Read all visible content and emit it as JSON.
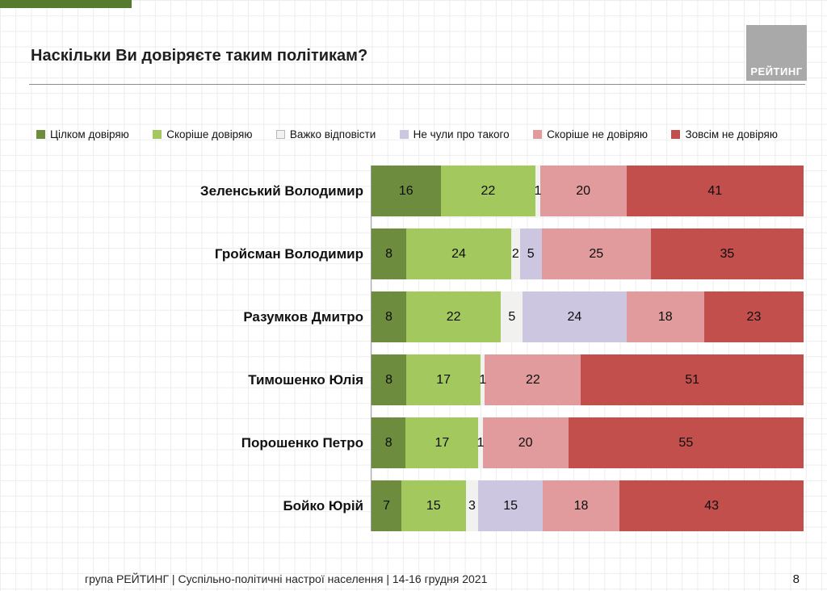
{
  "page": {
    "title": "Наскільки Ви довіряєте таким політикам?",
    "logo": "РЕЙТИНГ",
    "footer": "група РЕЙТИНГ | Суспільно-політичні настрої населення | 14-16 грудня 2021",
    "page_number": "8"
  },
  "chart_data": {
    "type": "bar",
    "orientation": "horizontal",
    "stacked": true,
    "title": "Наскільки Ви довіряєте таким політикам?",
    "legend_position": "top",
    "xlim": [
      0,
      100
    ],
    "grid": true,
    "categories": [
      "Зеленський Володимир",
      "Гройсман Володимир",
      "Разумков Дмитро",
      "Тимошенко Юлія",
      "Порошенко Петро",
      "Бойко Юрій"
    ],
    "series": [
      {
        "name": "Цілком довіряю",
        "color": "#6d8c3d",
        "values": [
          16,
          8,
          8,
          8,
          8,
          7
        ]
      },
      {
        "name": "Скоріше довіряю",
        "color": "#a3c85e",
        "values": [
          22,
          24,
          22,
          17,
          17,
          15
        ]
      },
      {
        "name": "Важко відповісти",
        "color": "#f1f1ef",
        "values": [
          1,
          2,
          5,
          1,
          1,
          3
        ]
      },
      {
        "name": "Не чули про такого",
        "color": "#ccc6e0",
        "values": [
          0,
          5,
          24,
          0,
          0,
          15
        ]
      },
      {
        "name": "Скоріше не довіряю",
        "color": "#e29b9d",
        "values": [
          20,
          25,
          18,
          22,
          20,
          18
        ]
      },
      {
        "name": "Зовсім не довіряю",
        "color": "#c24f4b",
        "values": [
          41,
          35,
          23,
          51,
          55,
          43
        ]
      }
    ]
  }
}
